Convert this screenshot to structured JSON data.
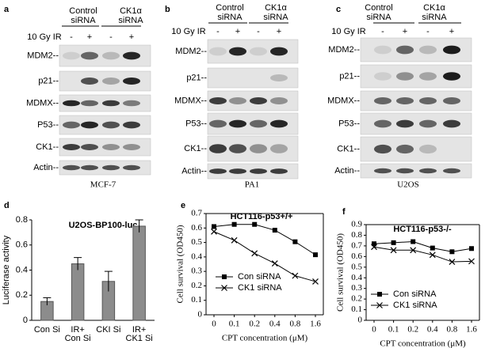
{
  "blots": [
    {
      "letter": "a",
      "groups": [
        [
          "Control",
          "siRNA"
        ],
        [
          "CK1α",
          "siRNA"
        ]
      ],
      "treatment": "10 Gy IR",
      "signs": [
        "-",
        "+",
        "-",
        "+"
      ],
      "rows": [
        "MDM2--",
        "p21--",
        "MDMX--",
        "P53--",
        "CK1--",
        "Actin--"
      ],
      "cell_line": "MCF-7"
    },
    {
      "letter": "b",
      "groups": [
        [
          "Control",
          "siRNA"
        ],
        [
          "CK1α",
          "siRNA"
        ]
      ],
      "treatment": "10 Gy IR",
      "signs": [
        "-",
        "+",
        "-",
        "+"
      ],
      "rows": [
        "MDM2--",
        "p21--",
        "MDMX--",
        "P53--",
        "CK1--",
        "Actin--"
      ],
      "cell_line": "PA1"
    },
    {
      "letter": "c",
      "groups": [
        [
          "Control",
          "siRNA"
        ],
        [
          "CK1α",
          "siRNA"
        ]
      ],
      "treatment": "10 Gy IR",
      "signs": [
        "-",
        "+",
        "-",
        "+"
      ],
      "rows": [
        "MDM2--",
        "p21--",
        "MDMX--",
        "P53--",
        "CK1--",
        "Actin--"
      ],
      "cell_line": "U2OS"
    }
  ],
  "chart_data": [
    {
      "type": "bar",
      "panel_label": "d",
      "title": "U2OS-BP100-luc",
      "y_label": "Luciferase activity",
      "categories": [
        [
          "Con Si"
        ],
        [
          "IR+",
          "Con Si"
        ],
        [
          "CKI Si"
        ],
        [
          "IR+",
          "CK1 Si"
        ]
      ],
      "values": [
        0.15,
        0.45,
        0.31,
        0.75
      ],
      "errors": [
        0.03,
        0.05,
        0.08,
        0.05
      ],
      "color": "#8c8c8c",
      "ylim": [
        0,
        0.8
      ],
      "yticks": [
        0,
        0.2,
        0.4,
        0.6,
        0.8
      ]
    },
    {
      "type": "line",
      "panel_label": "e",
      "title": "HCT116-p53+/+",
      "y_label": "Cell survival (OD450)",
      "x_label": "CPT concentration (μM)",
      "categories": [
        "0",
        "0.1",
        "0.2",
        "0.4",
        "0.8",
        "1.6"
      ],
      "series": [
        {
          "name": "Con siRNA",
          "color": "#000000",
          "marker": "square",
          "values": [
            0.61,
            0.625,
            0.625,
            0.585,
            0.505,
            0.415
          ]
        },
        {
          "name": "CK1 siRNA",
          "color": "#000000",
          "marker": "x",
          "values": [
            0.575,
            0.515,
            0.425,
            0.355,
            0.27,
            0.23
          ]
        }
      ],
      "ylim": [
        0,
        0.7
      ],
      "yticks": [
        0,
        0.1,
        0.2,
        0.3,
        0.4,
        0.5,
        0.6,
        0.7
      ],
      "legend": "lower left"
    },
    {
      "type": "line",
      "panel_label": "f",
      "title": "HCT116-p53-/-",
      "y_label": "Cell survival (OD450)",
      "x_label": "CPT concentration (μM)",
      "categories": [
        "0",
        "0.1",
        "0.2",
        "0.4",
        "0.8",
        "1.6"
      ],
      "series": [
        {
          "name": "Con siRNA",
          "color": "#000000",
          "marker": "square",
          "values": [
            0.72,
            0.73,
            0.74,
            0.68,
            0.645,
            0.675
          ]
        },
        {
          "name": "CK1 siRNA",
          "color": "#000000",
          "marker": "x",
          "values": [
            0.69,
            0.66,
            0.66,
            0.615,
            0.55,
            0.555
          ]
        }
      ],
      "ylim": [
        0,
        0.9
      ],
      "yticks": [
        0,
        0.1,
        0.2,
        0.3,
        0.4,
        0.5,
        0.6,
        0.7,
        0.8,
        0.9
      ],
      "legend": "lower left"
    }
  ]
}
